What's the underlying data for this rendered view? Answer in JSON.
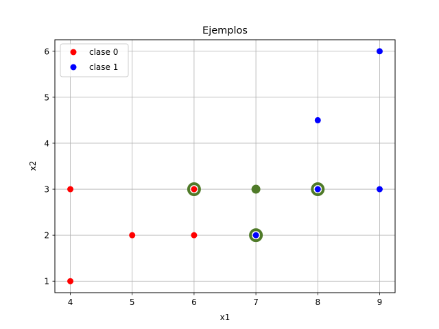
{
  "chart_data": {
    "type": "scatter",
    "title": "Ejemplos",
    "xlabel": "x1",
    "ylabel": "x2",
    "xlim": [
      3.75,
      9.25
    ],
    "ylim": [
      0.75,
      6.25
    ],
    "xticks": [
      4,
      5,
      6,
      7,
      8,
      9
    ],
    "yticks": [
      1,
      2,
      3,
      4,
      5,
      6
    ],
    "xtick_labels": [
      "4",
      "5",
      "6",
      "7",
      "8",
      "9"
    ],
    "ytick_labels": [
      "1",
      "2",
      "3",
      "4",
      "5",
      "6"
    ],
    "grid": true,
    "legend_position": "top-left",
    "series": [
      {
        "name": "clase 0",
        "color": "#ff0000",
        "points": [
          [
            4,
            1
          ],
          [
            4,
            3
          ],
          [
            5,
            2
          ],
          [
            6,
            2
          ],
          [
            6,
            3
          ]
        ]
      },
      {
        "name": "clase 1",
        "color": "#0000ff",
        "points": [
          [
            7,
            2
          ],
          [
            8,
            3
          ],
          [
            8,
            4.5
          ],
          [
            9,
            3
          ],
          [
            9,
            6
          ]
        ]
      }
    ],
    "highlight": {
      "color": "#4f7a28",
      "ring_points": [
        [
          6,
          3
        ],
        [
          7,
          2
        ],
        [
          8,
          3
        ]
      ],
      "solid_points": [
        [
          7,
          3
        ]
      ]
    }
  }
}
